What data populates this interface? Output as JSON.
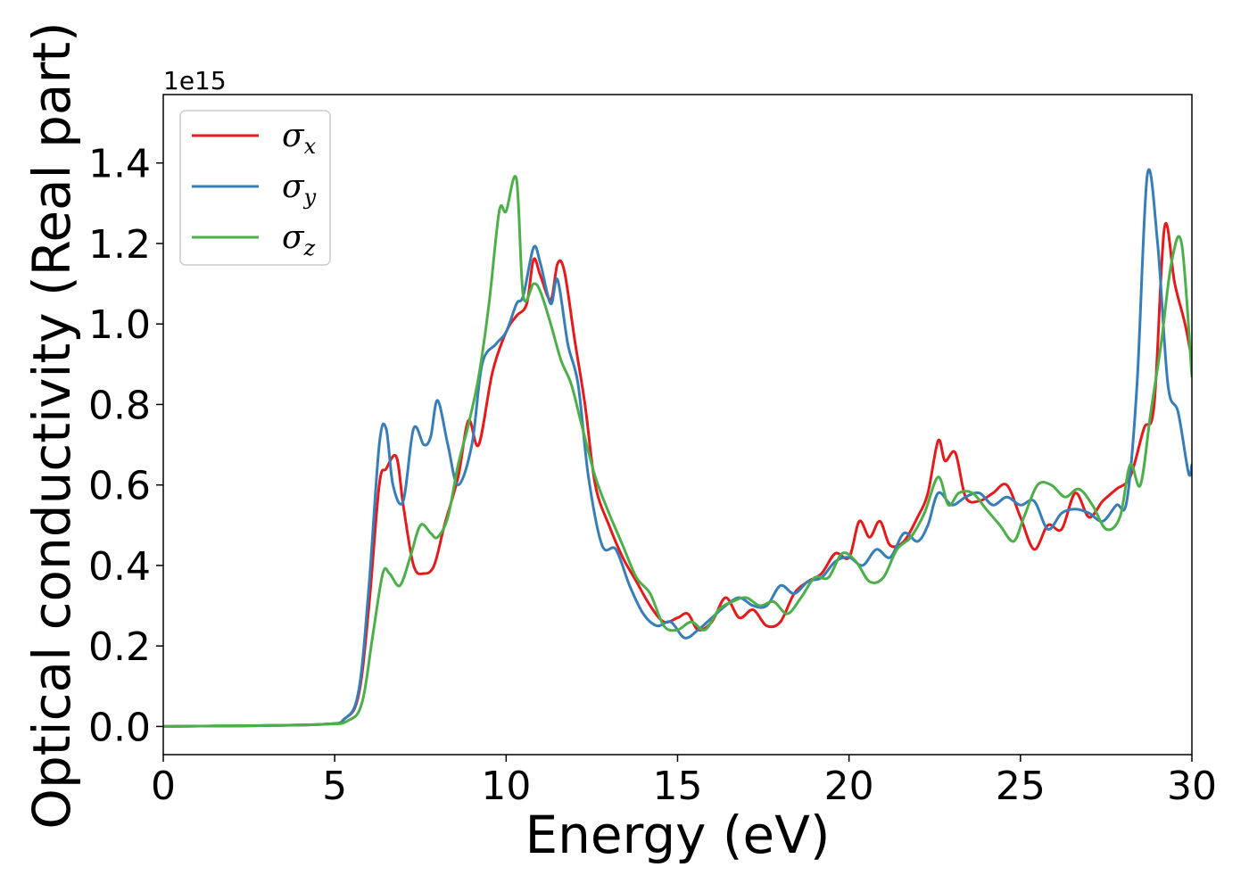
{
  "chart_data": {
    "type": "line",
    "title": "",
    "xlabel": "Energy (eV)",
    "ylabel": "Optical conductivity (Real part)",
    "y_offset_text": "1e15",
    "y_scale_factor": 1000000000000000.0,
    "xlim": [
      0,
      30
    ],
    "ylim": [
      -0.07,
      1.57
    ],
    "xticks": [
      0,
      5,
      10,
      15,
      20,
      25,
      30
    ],
    "xtick_labels": [
      "0",
      "5",
      "10",
      "15",
      "20",
      "25",
      "30"
    ],
    "yticks": [
      0.0,
      0.2,
      0.4,
      0.6,
      0.8,
      1.0,
      1.2,
      1.4
    ],
    "ytick_labels": [
      "0.0",
      "0.2",
      "0.4",
      "0.6",
      "0.8",
      "1.0",
      "1.2",
      "1.4"
    ],
    "grid": false,
    "legend_position": "top-left",
    "series": [
      {
        "name": "σx",
        "symbol": "σ",
        "subscript": "x",
        "color": "#e41a1c",
        "x": [
          0,
          4.5,
          5.3,
          5.7,
          6.0,
          6.3,
          6.5,
          6.8,
          7.0,
          7.3,
          7.6,
          7.9,
          8.2,
          8.6,
          8.9,
          9.2,
          9.6,
          10.0,
          10.3,
          10.6,
          10.8,
          11.0,
          11.3,
          11.5,
          11.7,
          12.0,
          12.3,
          12.6,
          13.0,
          13.4,
          13.8,
          14.2,
          14.6,
          15.0,
          15.3,
          15.6,
          16.0,
          16.4,
          16.8,
          17.2,
          17.6,
          18.0,
          18.4,
          18.8,
          19.2,
          19.6,
          20.0,
          20.3,
          20.6,
          20.9,
          21.2,
          21.6,
          22.0,
          22.3,
          22.6,
          22.8,
          23.1,
          23.4,
          23.8,
          24.2,
          24.6,
          25.0,
          25.4,
          25.8,
          26.2,
          26.6,
          27.0,
          27.4,
          27.8,
          28.2,
          28.6,
          28.9,
          29.2,
          29.5,
          29.8,
          30.0
        ],
        "y": [
          0.0,
          0.005,
          0.02,
          0.08,
          0.3,
          0.6,
          0.64,
          0.67,
          0.55,
          0.4,
          0.38,
          0.4,
          0.5,
          0.62,
          0.76,
          0.7,
          0.88,
          0.98,
          1.02,
          1.05,
          1.16,
          1.12,
          1.06,
          1.15,
          1.13,
          0.96,
          0.8,
          0.6,
          0.5,
          0.42,
          0.36,
          0.3,
          0.26,
          0.27,
          0.28,
          0.24,
          0.26,
          0.32,
          0.27,
          0.29,
          0.25,
          0.26,
          0.33,
          0.36,
          0.38,
          0.43,
          0.42,
          0.51,
          0.47,
          0.51,
          0.45,
          0.46,
          0.52,
          0.58,
          0.71,
          0.66,
          0.68,
          0.57,
          0.56,
          0.58,
          0.6,
          0.52,
          0.44,
          0.5,
          0.49,
          0.58,
          0.52,
          0.56,
          0.59,
          0.62,
          0.74,
          0.8,
          1.24,
          1.1,
          1.0,
          0.91
        ]
      },
      {
        "name": "σy",
        "symbol": "σ",
        "subscript": "y",
        "color": "#377eb8",
        "x": [
          0,
          4.5,
          5.3,
          5.7,
          6.0,
          6.3,
          6.5,
          6.7,
          7.0,
          7.3,
          7.6,
          7.8,
          8.0,
          8.3,
          8.6,
          9.0,
          9.3,
          9.7,
          10.0,
          10.3,
          10.5,
          10.8,
          11.0,
          11.3,
          11.5,
          11.8,
          12.1,
          12.4,
          12.8,
          13.2,
          13.6,
          14.0,
          14.4,
          14.8,
          15.2,
          15.6,
          16.0,
          16.4,
          16.8,
          17.2,
          17.6,
          18.0,
          18.4,
          18.8,
          19.2,
          19.6,
          20.0,
          20.4,
          20.8,
          21.2,
          21.6,
          22.0,
          22.3,
          22.6,
          23.0,
          23.4,
          23.8,
          24.2,
          24.6,
          25.0,
          25.4,
          25.8,
          26.2,
          26.6,
          27.0,
          27.4,
          27.8,
          28.1,
          28.4,
          28.7,
          29.0,
          29.3,
          29.6,
          29.9,
          30.0
        ],
        "y": [
          0.0,
          0.005,
          0.02,
          0.09,
          0.35,
          0.7,
          0.74,
          0.6,
          0.56,
          0.74,
          0.7,
          0.72,
          0.81,
          0.7,
          0.6,
          0.7,
          0.9,
          0.95,
          0.98,
          1.05,
          1.07,
          1.19,
          1.15,
          1.05,
          1.11,
          0.95,
          0.85,
          0.62,
          0.45,
          0.44,
          0.35,
          0.28,
          0.25,
          0.26,
          0.22,
          0.24,
          0.27,
          0.3,
          0.32,
          0.3,
          0.3,
          0.35,
          0.33,
          0.36,
          0.37,
          0.41,
          0.42,
          0.4,
          0.44,
          0.42,
          0.48,
          0.46,
          0.5,
          0.58,
          0.55,
          0.57,
          0.58,
          0.55,
          0.57,
          0.55,
          0.56,
          0.49,
          0.53,
          0.54,
          0.53,
          0.51,
          0.55,
          0.56,
          0.85,
          1.37,
          1.2,
          0.85,
          0.78,
          0.63,
          0.65
        ]
      },
      {
        "name": "σz",
        "symbol": "σ",
        "subscript": "z",
        "color": "#4daf4a",
        "x": [
          0,
          4.5,
          5.4,
          5.8,
          6.1,
          6.4,
          6.6,
          6.9,
          7.2,
          7.5,
          7.8,
          8.0,
          8.3,
          8.6,
          8.9,
          9.2,
          9.5,
          9.8,
          10.0,
          10.3,
          10.5,
          10.8,
          11.0,
          11.3,
          11.6,
          11.9,
          12.2,
          12.6,
          13.0,
          13.4,
          13.8,
          14.2,
          14.6,
          15.0,
          15.4,
          15.8,
          16.2,
          16.6,
          17.0,
          17.4,
          17.8,
          18.2,
          18.6,
          19.0,
          19.4,
          19.8,
          20.2,
          20.6,
          21.0,
          21.4,
          21.8,
          22.2,
          22.6,
          22.9,
          23.2,
          23.6,
          24.0,
          24.4,
          24.8,
          25.1,
          25.5,
          25.9,
          26.3,
          26.7,
          27.1,
          27.5,
          27.9,
          28.2,
          28.5,
          28.8,
          29.1,
          29.4,
          29.7,
          30.0
        ],
        "y": [
          0.0,
          0.005,
          0.015,
          0.06,
          0.22,
          0.38,
          0.38,
          0.35,
          0.42,
          0.5,
          0.48,
          0.47,
          0.52,
          0.65,
          0.75,
          0.87,
          1.05,
          1.28,
          1.28,
          1.36,
          1.07,
          1.1,
          1.08,
          1.0,
          0.91,
          0.85,
          0.75,
          0.62,
          0.53,
          0.45,
          0.37,
          0.33,
          0.25,
          0.24,
          0.26,
          0.24,
          0.29,
          0.31,
          0.32,
          0.3,
          0.31,
          0.28,
          0.32,
          0.37,
          0.37,
          0.43,
          0.41,
          0.36,
          0.37,
          0.44,
          0.47,
          0.53,
          0.62,
          0.55,
          0.58,
          0.58,
          0.54,
          0.5,
          0.46,
          0.52,
          0.6,
          0.6,
          0.57,
          0.59,
          0.55,
          0.49,
          0.52,
          0.65,
          0.6,
          0.78,
          0.95,
          1.15,
          1.2,
          0.87
        ]
      }
    ]
  }
}
